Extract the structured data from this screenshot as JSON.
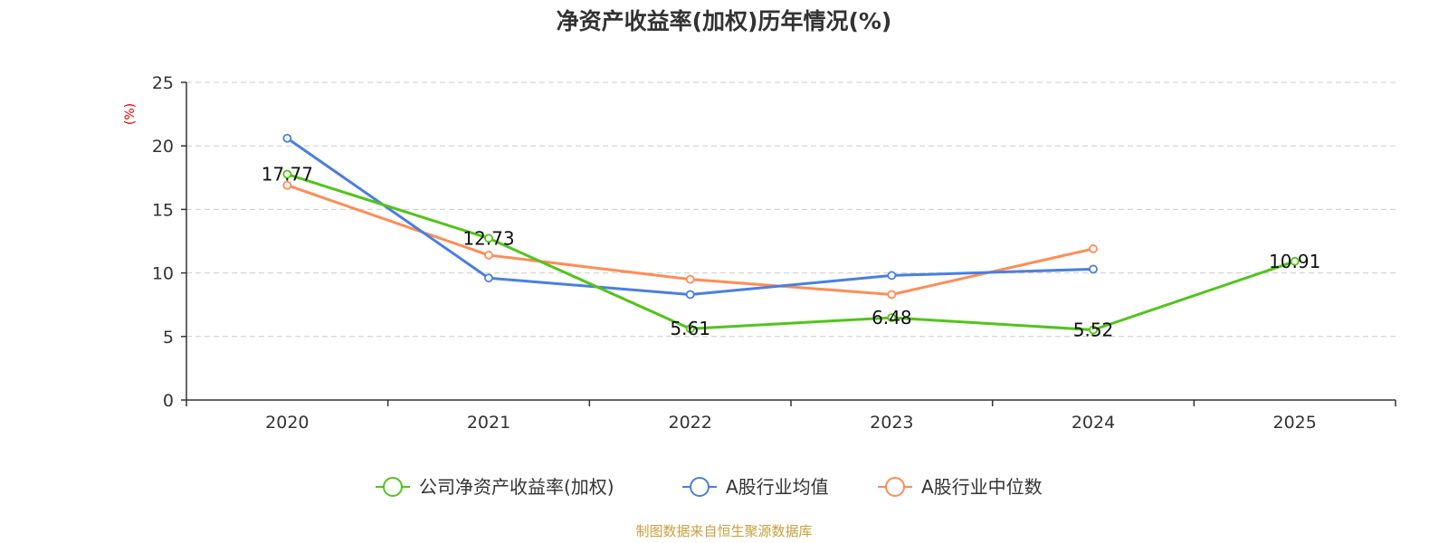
{
  "chart_data": {
    "type": "line",
    "title": "净资产收益率(加权)历年情况(%)",
    "ylabel": "(%)",
    "xlabel": "",
    "categories": [
      "2020",
      "2021",
      "2022",
      "2023",
      "2024",
      "2025"
    ],
    "ylim": [
      0,
      25
    ],
    "yticks": [
      0,
      5,
      10,
      15,
      20,
      25
    ],
    "grid": true,
    "legend_position": "bottom-center",
    "series": [
      {
        "name": "公司净资产收益率(加权)",
        "color": "#52c41a",
        "values": [
          17.77,
          12.73,
          5.61,
          6.48,
          5.52,
          10.91
        ],
        "labels": [
          "17.77",
          "12.73",
          "5.61",
          "6.48",
          "5.52",
          "10.91"
        ]
      },
      {
        "name": "A股行业均值",
        "color": "#4a7fe0",
        "values": [
          20.6,
          9.6,
          8.3,
          9.8,
          10.3,
          null
        ]
      },
      {
        "name": "A股行业中位数",
        "color": "#ff8c55",
        "values": [
          16.9,
          11.4,
          9.5,
          8.3,
          11.9,
          null
        ]
      }
    ],
    "source": "制图数据来自恒生聚源数据库"
  }
}
